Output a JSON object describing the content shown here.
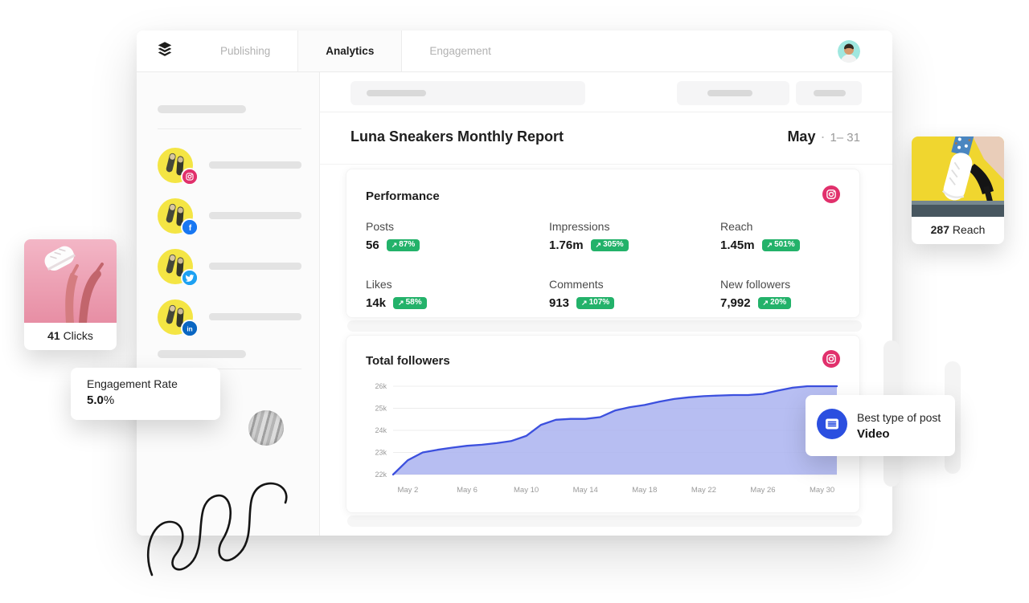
{
  "nav": {
    "logo": "buffer-logo",
    "tabs": [
      {
        "label": "Publishing",
        "active": false
      },
      {
        "label": "Analytics",
        "active": true
      },
      {
        "label": "Engagement",
        "active": false
      }
    ]
  },
  "report": {
    "title": "Luna Sneakers Monthly Report",
    "month": "May",
    "separator": "·",
    "range": "1– 31"
  },
  "performance": {
    "title": "Performance",
    "arrow": "↗",
    "metrics": [
      {
        "label": "Posts",
        "value": "56",
        "delta": "87%"
      },
      {
        "label": "Impressions",
        "value": "1.76m",
        "delta": "305%"
      },
      {
        "label": "Reach",
        "value": "1.45m",
        "delta": "501%"
      },
      {
        "label": "Likes",
        "value": "14k",
        "delta": "58%"
      },
      {
        "label": "Comments",
        "value": "913",
        "delta": "107%"
      },
      {
        "label": "New followers",
        "value": "7,992",
        "delta": "20%"
      }
    ]
  },
  "followers": {
    "title": "Total followers"
  },
  "chart_data": {
    "type": "area",
    "title": "Total followers",
    "unit": "followers (thousands)",
    "days": [
      1,
      2,
      3,
      4,
      5,
      6,
      7,
      8,
      9,
      10,
      11,
      12,
      13,
      14,
      15,
      16,
      17,
      18,
      19,
      20,
      21,
      22,
      23,
      24,
      25,
      26,
      27,
      28,
      29,
      30,
      31
    ],
    "values_k": [
      22.0,
      22.65,
      23.0,
      23.12,
      23.22,
      23.3,
      23.35,
      23.42,
      23.52,
      23.75,
      24.25,
      24.48,
      24.52,
      24.52,
      24.6,
      24.9,
      25.05,
      25.15,
      25.3,
      25.42,
      25.5,
      25.55,
      25.58,
      25.6,
      25.6,
      25.65,
      25.8,
      25.93,
      26.0,
      26.0,
      26.0
    ],
    "ylim_k": [
      22,
      26
    ],
    "yticks": [
      {
        "v": 22,
        "label": "22k"
      },
      {
        "v": 23,
        "label": "23k"
      },
      {
        "v": 24,
        "label": "24k"
      },
      {
        "v": 25,
        "label": "25k"
      },
      {
        "v": 26,
        "label": "26k"
      }
    ],
    "xticks": [
      {
        "day": 2,
        "label": "May 2"
      },
      {
        "day": 6,
        "label": "May 6"
      },
      {
        "day": 10,
        "label": "May 10"
      },
      {
        "day": 14,
        "label": "May 14"
      },
      {
        "day": 18,
        "label": "May 18"
      },
      {
        "day": 22,
        "label": "May 22"
      },
      {
        "day": 26,
        "label": "May 26"
      },
      {
        "day": 30,
        "label": "May 30"
      }
    ],
    "grid": true,
    "legend": null,
    "line_color": "#3c50de",
    "fill_color": "#aab3f0"
  },
  "floating_cards": {
    "clicks": {
      "value": "41",
      "label": "Clicks"
    },
    "engagement_rate": {
      "label": "Engagement Rate",
      "value": "5.0",
      "unit": "%"
    },
    "reach": {
      "value": "287",
      "label": "Reach"
    },
    "best_post": {
      "label": "Best type of post",
      "value": "Video"
    }
  },
  "sidebar": {
    "channels": [
      {
        "network": "instagram",
        "color": "#e1306c"
      },
      {
        "network": "facebook",
        "color": "#1877f2"
      },
      {
        "network": "twitter",
        "color": "#1da1f2"
      },
      {
        "network": "linkedin",
        "color": "#0a66c2"
      }
    ]
  },
  "colors": {
    "badge_green": "#23b26a",
    "chart_line": "#3c50de",
    "chart_fill": "#aab3f0",
    "instagram_pink": "#e1306c",
    "best_post_blue": "#2b4fe0",
    "avatar_teal": "#9fe7df"
  }
}
